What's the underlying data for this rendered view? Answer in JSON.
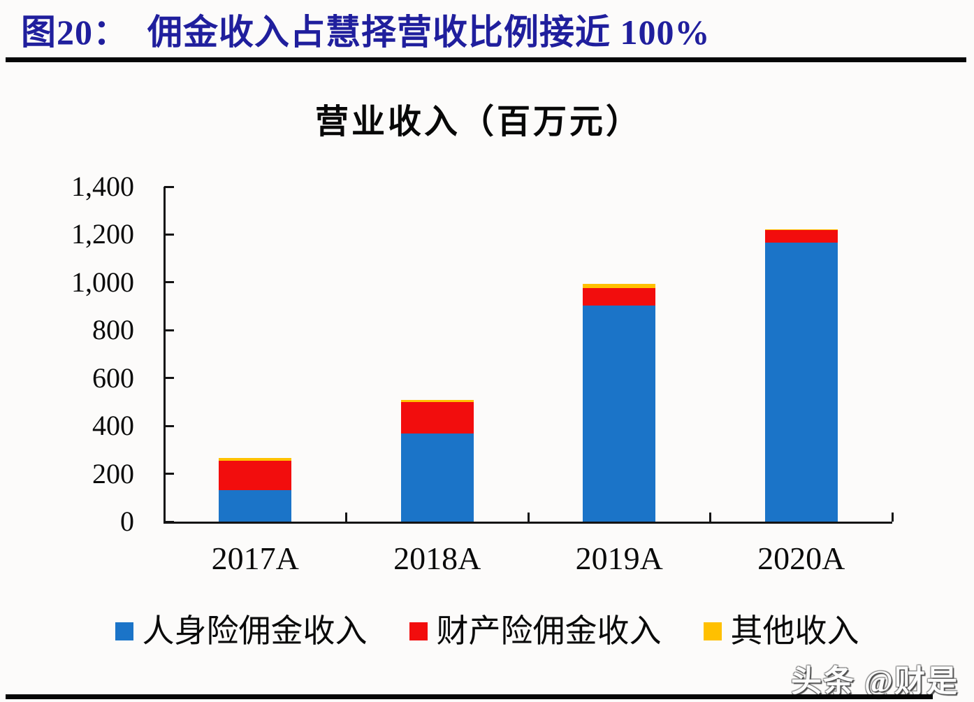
{
  "header": {
    "figure_title": "图20：  佣金收入占慧择营收比例接近 100%"
  },
  "chart_data": {
    "type": "bar",
    "subtype": "stacked",
    "title": "营业收入（百万元）",
    "categories": [
      "2017A",
      "2018A",
      "2019A",
      "2020A"
    ],
    "series": [
      {
        "name": "人身险佣金收入",
        "color": "#1b74c8",
        "values": [
          131,
          368,
          902,
          1165
        ]
      },
      {
        "name": "财产险佣金收入",
        "color": "#f20d0d",
        "values": [
          123,
          131,
          73,
          53
        ]
      },
      {
        "name": "其他收入",
        "color": "#ffc000",
        "values": [
          11,
          9,
          18,
          3
        ]
      }
    ],
    "totals": [
      265,
      508,
      993,
      1221
    ],
    "ylim": [
      0,
      1400
    ],
    "ytick_step": 200,
    "ytick_labels": [
      "0",
      "200",
      "400",
      "600",
      "800",
      "1,000",
      "1,200",
      "1,400"
    ],
    "grid": false,
    "legend_position": "bottom"
  },
  "legend": {
    "items": [
      {
        "label": "人身险佣金收入",
        "color": "#1b74c8"
      },
      {
        "label": "财产险佣金收入",
        "color": "#f20d0d"
      },
      {
        "label": "其他收入",
        "color": "#ffc000"
      }
    ]
  },
  "watermark": {
    "text": "头条 @财是"
  },
  "colors": {
    "title_blue": "#201f9d",
    "axis_black": "#141414",
    "bar_blue": "#1b74c8",
    "bar_red": "#f20d0d",
    "bar_yellow": "#ffc000"
  }
}
